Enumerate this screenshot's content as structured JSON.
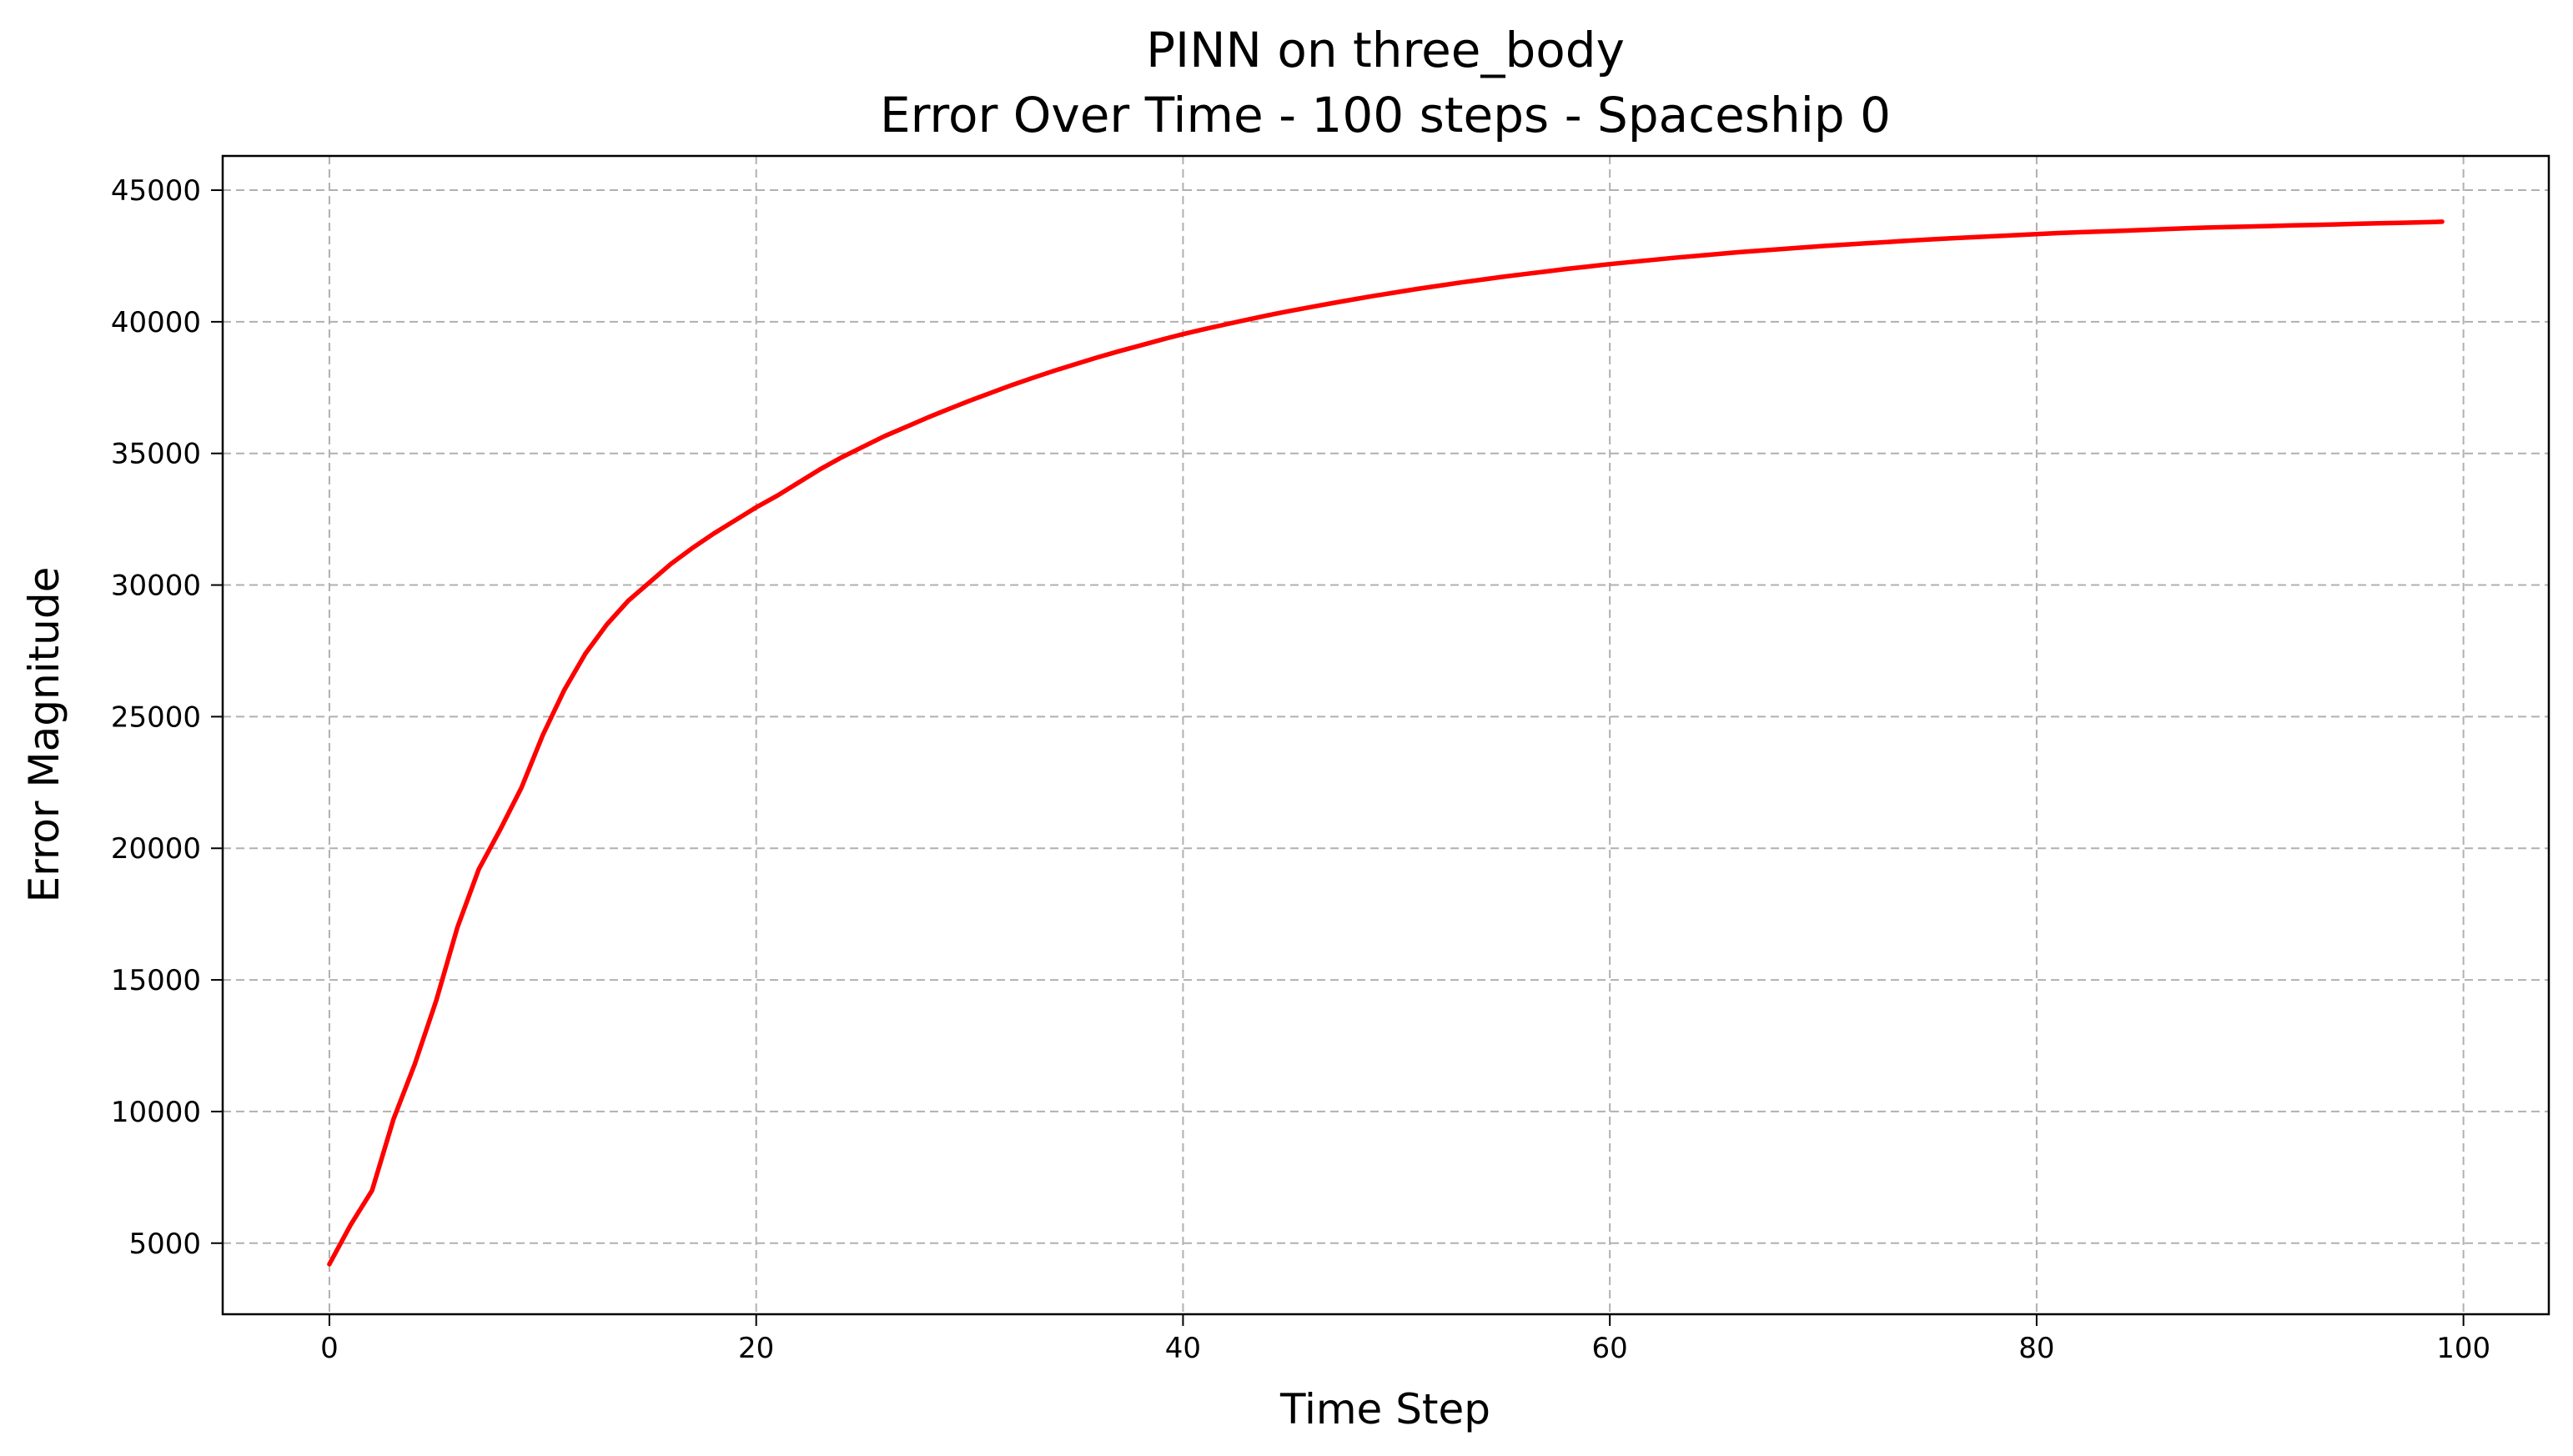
{
  "chart_data": {
    "type": "line",
    "title": "PINN on three_body",
    "subtitle": "Error Over Time - 100 steps - Spaceship 0",
    "xlabel": "Time Step",
    "ylabel": "Error Magnitude",
    "xlim": [
      -5,
      104
    ],
    "ylim": [
      2300,
      46300
    ],
    "grid": true,
    "x_ticks": [
      0,
      20,
      40,
      60,
      80,
      100
    ],
    "x_tick_labels": [
      "0",
      "20",
      "40",
      "60",
      "80",
      "100"
    ],
    "y_ticks": [
      5000,
      10000,
      15000,
      20000,
      25000,
      30000,
      35000,
      40000,
      45000
    ],
    "y_tick_labels": [
      "5000",
      "10000",
      "15000",
      "20000",
      "25000",
      "30000",
      "35000",
      "40000",
      "45000"
    ],
    "series": [
      {
        "color": "#ff0000",
        "x": [
          0,
          1,
          2,
          3,
          4,
          5,
          6,
          7,
          8,
          9,
          10,
          11,
          12,
          13,
          14,
          15,
          16,
          17,
          18,
          19,
          20,
          21,
          22,
          23,
          24,
          25,
          26,
          27,
          28,
          29,
          30,
          31,
          32,
          33,
          34,
          35,
          36,
          37,
          38,
          39,
          40,
          41,
          42,
          43,
          44,
          45,
          46,
          47,
          48,
          49,
          50,
          51,
          52,
          53,
          54,
          55,
          56,
          57,
          58,
          59,
          60,
          61,
          62,
          63,
          64,
          65,
          66,
          67,
          68,
          69,
          70,
          71,
          72,
          73,
          74,
          75,
          76,
          77,
          78,
          79,
          80,
          81,
          82,
          83,
          84,
          85,
          86,
          87,
          88,
          89,
          90,
          91,
          92,
          93,
          94,
          95,
          96,
          97,
          98,
          99
        ],
        "values": [
          4200,
          5700,
          7000,
          9700,
          11800,
          14200,
          17000,
          19200,
          20700,
          22300,
          24300,
          26000,
          27400,
          28500,
          29400,
          30100,
          30800,
          31400,
          31950,
          32450,
          32950,
          33400,
          33900,
          34400,
          34850,
          35250,
          35650,
          36000,
          36350,
          36680,
          37000,
          37300,
          37600,
          37880,
          38150,
          38400,
          38650,
          38880,
          39100,
          39320,
          39530,
          39720,
          39900,
          40080,
          40250,
          40410,
          40560,
          40710,
          40850,
          40990,
          41120,
          41250,
          41370,
          41490,
          41600,
          41710,
          41810,
          41910,
          42010,
          42100,
          42190,
          42270,
          42350,
          42430,
          42500,
          42570,
          42640,
          42700,
          42760,
          42820,
          42880,
          42930,
          42980,
          43030,
          43080,
          43130,
          43170,
          43210,
          43250,
          43290,
          43330,
          43370,
          43400,
          43430,
          43460,
          43490,
          43520,
          43550,
          43580,
          43600,
          43620,
          43640,
          43660,
          43680,
          43700,
          43720,
          43740,
          43760,
          43780,
          43800
        ]
      }
    ]
  }
}
